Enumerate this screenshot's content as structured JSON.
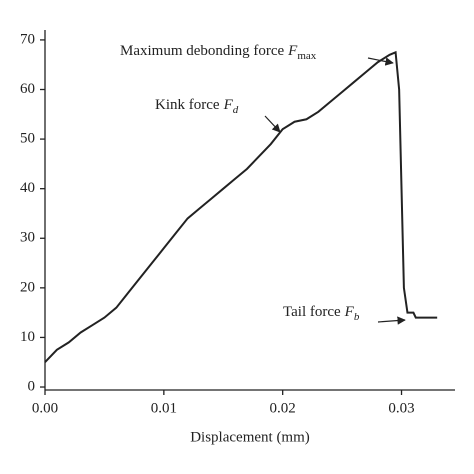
{
  "chart_data": {
    "type": "line",
    "x_label": "Displacement (mm)",
    "x": [
      0,
      0.001,
      0.002,
      0.003,
      0.004,
      0.005,
      0.006,
      0.007,
      0.008,
      0.009,
      0.01,
      0.011,
      0.012,
      0.013,
      0.014,
      0.015,
      0.016,
      0.017,
      0.018,
      0.019,
      0.02,
      0.021,
      0.022,
      0.023,
      0.024,
      0.025,
      0.026,
      0.027,
      0.028,
      0.029,
      0.0295,
      0.0298,
      0.03,
      0.0302,
      0.0305,
      0.031,
      0.0312,
      0.033
    ],
    "values": [
      5,
      7.5,
      9,
      11,
      12.5,
      14,
      16,
      19,
      22,
      25,
      28,
      31,
      34,
      36,
      38,
      40,
      42,
      44,
      46.5,
      49,
      52,
      53.5,
      54,
      55.5,
      57.5,
      59.5,
      61.5,
      63.5,
      65.5,
      67,
      67.5,
      60,
      40,
      20,
      15,
      15,
      14,
      14
    ],
    "color": "#222222",
    "xlim": [
      0,
      0.0345
    ],
    "ylim": [
      -0.6,
      72
    ],
    "xticks": [
      {
        "value": 0,
        "label": "0.00"
      },
      0.01,
      0.02,
      0.03
    ],
    "yticks": [
      0,
      10,
      20,
      30,
      40,
      50,
      60,
      70
    ],
    "annotations": [
      {
        "text": "Maximum debonding force",
        "symbol": "F",
        "subscript": "max"
      },
      {
        "text": "Kink force",
        "symbol": "F",
        "subscript": "d"
      },
      {
        "text": "Tail force",
        "symbol": "F",
        "subscript": "b"
      }
    ]
  }
}
